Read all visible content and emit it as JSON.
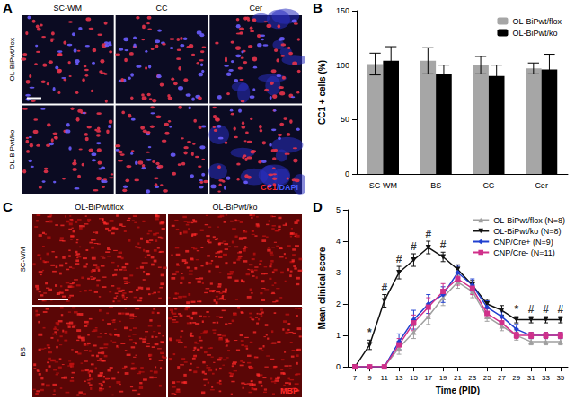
{
  "images": [
    {
      "panel": "A",
      "columns": [
        "SC-WM",
        "CC",
        "Cer"
      ],
      "rows": [
        "OL-BiPwt/flox",
        "OL-BiPwt/ko"
      ],
      "stain": [
        {
          "text": "CC1",
          "color": "#ff2a2a"
        },
        {
          "text": "/DAPI",
          "color": "#4a5cff"
        }
      ]
    },
    {
      "panel": "C",
      "columns": [
        "OL-BiPwt/flox",
        "OL-BiPwt/ko"
      ],
      "rows": [
        "SC-WM",
        "BS"
      ],
      "stain": [
        {
          "text": "MBP",
          "color": "#ff2a2a"
        }
      ]
    }
  ],
  "chart_data": [
    {
      "panel": "B",
      "type": "bar",
      "categories": [
        "SC-WM",
        "BS",
        "CC",
        "Cer"
      ],
      "y_label": "CC1 + cells (%)",
      "ylim": [
        0,
        150
      ],
      "yticks": [
        0,
        50,
        100,
        150
      ],
      "grid": false,
      "legend": "upper right",
      "series": [
        {
          "name": "OL-BiPwt/flox",
          "color": "#a6a6a6",
          "values": [
            101,
            104,
            100,
            97
          ],
          "errors": [
            10,
            12,
            8,
            5
          ]
        },
        {
          "name": "OL-BiPwt/ko",
          "color": "#000000",
          "values": [
            104,
            92,
            90,
            96
          ],
          "errors": [
            13,
            8,
            10,
            14
          ]
        }
      ]
    },
    {
      "panel": "D",
      "type": "line",
      "x_label": "Time (PID)",
      "y_label": "Mean clinical score",
      "x": [
        7,
        9,
        11,
        13,
        15,
        17,
        19,
        21,
        23,
        25,
        27,
        29,
        31,
        33,
        35
      ],
      "xlim": [
        6,
        36
      ],
      "xticks": [
        7,
        9,
        11,
        13,
        15,
        17,
        19,
        21,
        23,
        25,
        27,
        29,
        31,
        33,
        35
      ],
      "ylim": [
        0,
        5
      ],
      "yticks": [
        0,
        1,
        2,
        3,
        4,
        5
      ],
      "grid": false,
      "legend": "upper right",
      "series": [
        {
          "name": "OL-BiPwt/flox (N=8)",
          "color": "#a0a0a0",
          "marker": "triangle",
          "values": [
            0,
            0,
            0,
            0.6,
            1.1,
            1.6,
            2.2,
            2.7,
            2.4,
            1.6,
            1.3,
            1.0,
            0.8,
            0.8,
            0.8
          ],
          "errors": [
            0,
            0,
            0,
            0.2,
            0.2,
            0.25,
            0.25,
            0.2,
            0.2,
            0.15,
            0.15,
            0.15,
            0.1,
            0.1,
            0.1
          ]
        },
        {
          "name": "OL-BiPwt/ko (N=8)",
          "color": "#111111",
          "marker": "triangle_down",
          "values": [
            0,
            0.7,
            2.1,
            3.0,
            3.4,
            3.8,
            3.5,
            3.1,
            2.6,
            2.0,
            1.8,
            1.5,
            1.5,
            1.5,
            1.5
          ],
          "errors": [
            0,
            0.15,
            0.2,
            0.2,
            0.2,
            0.2,
            0.15,
            0.15,
            0.15,
            0.15,
            0.15,
            0.1,
            0.1,
            0.1,
            0.1
          ]
        },
        {
          "name": "CNP/Cre+ (N=9)",
          "color": "#2040d0",
          "marker": "diamond",
          "values": [
            0,
            0,
            0,
            0.8,
            1.5,
            2.0,
            2.3,
            3.0,
            2.6,
            1.9,
            1.6,
            1.2,
            1.0,
            1.0,
            1.0
          ],
          "errors": [
            0,
            0,
            0,
            0.25,
            0.3,
            0.3,
            0.25,
            0.2,
            0.2,
            0.2,
            0.15,
            0.15,
            0.1,
            0.1,
            0.1
          ]
        },
        {
          "name": "CNP/Cre- (N=11)",
          "color": "#d0308a",
          "marker": "square",
          "values": [
            0,
            0,
            0,
            0.7,
            1.4,
            1.9,
            2.4,
            2.8,
            2.5,
            1.7,
            1.4,
            1.0,
            1.0,
            1.0,
            1.0
          ],
          "errors": [
            0,
            0,
            0,
            0.2,
            0.25,
            0.3,
            0.25,
            0.2,
            0.2,
            0.15,
            0.15,
            0.1,
            0.1,
            0.1,
            0.1
          ]
        }
      ],
      "annotations": [
        {
          "text": "*",
          "x": 9
        },
        {
          "text": "#",
          "x": 11
        },
        {
          "text": "#",
          "x": 13
        },
        {
          "text": "#",
          "x": 15
        },
        {
          "text": "#",
          "x": 17
        },
        {
          "text": "#",
          "x": 19
        },
        {
          "text": "*",
          "x": 29
        },
        {
          "text": "#",
          "x": 31
        },
        {
          "text": "#",
          "x": 33
        },
        {
          "text": "#",
          "x": 35
        }
      ]
    }
  ]
}
